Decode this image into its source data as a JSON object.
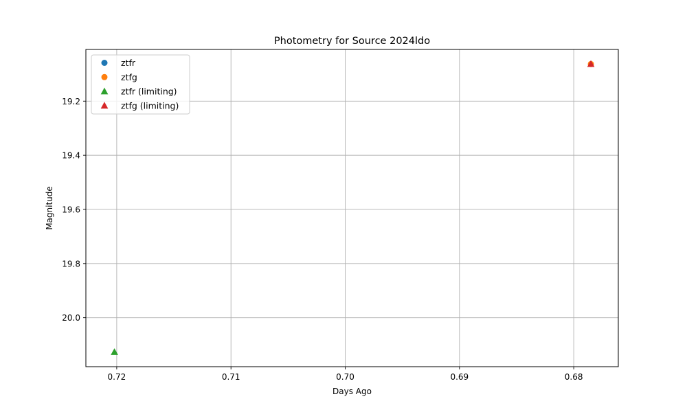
{
  "chart_data": {
    "type": "scatter",
    "title": "Photometry for Source 2024ldo",
    "xlabel": "Days Ago",
    "ylabel": "Magnitude",
    "x_inverted": true,
    "y_inverted": true,
    "xlim": [
      0.7227,
      0.6761
    ],
    "ylim": [
      20.181,
      19.009
    ],
    "xticks": [
      0.72,
      0.71,
      0.7,
      0.69,
      0.68
    ],
    "xtick_labels": [
      "0.72",
      "0.71",
      "0.70",
      "0.69",
      "0.68"
    ],
    "yticks": [
      19.2,
      19.4,
      19.6,
      19.8,
      20.0
    ],
    "ytick_labels": [
      "19.2",
      "19.4",
      "19.6",
      "19.8",
      "20.0"
    ],
    "grid": true,
    "legend_position": "top-left",
    "series": [
      {
        "name": "ztfr",
        "marker": "circle",
        "color": "#1f77b4",
        "points": []
      },
      {
        "name": "ztfg",
        "marker": "circle",
        "color": "#ff7f0e",
        "points": [
          {
            "x": 0.6785,
            "y": 19.063
          }
        ]
      },
      {
        "name": "ztfr (limiting)",
        "marker": "triangle",
        "color": "#2ca02c",
        "points": [
          {
            "x": 0.7202,
            "y": 20.127
          }
        ]
      },
      {
        "name": "ztfg (limiting)",
        "marker": "triangle",
        "color": "#d62728",
        "points": [
          {
            "x": 0.6785,
            "y": 19.063
          }
        ]
      }
    ],
    "grid_color": "#b0b0b0"
  }
}
